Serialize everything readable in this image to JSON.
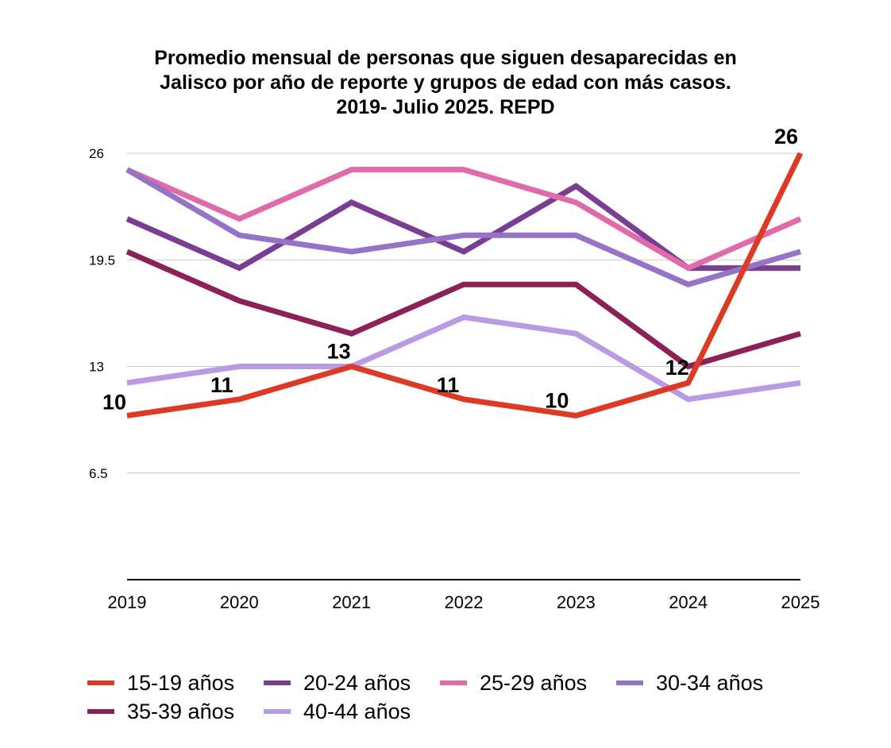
{
  "chart_data": {
    "type": "line",
    "title_lines": [
      "Promedio mensual de personas que siguen desaparecidas en",
      "Jalisco por año de reporte y grupos de edad con más casos.",
      "2019- Julio 2025. REPD"
    ],
    "categories": [
      "2019",
      "2020",
      "2021",
      "2022",
      "2023",
      "2024",
      "2025"
    ],
    "y_ticks": [
      "26",
      "19.5",
      "13",
      "6.5"
    ],
    "y_tick_values": [
      26,
      19.5,
      13,
      6.5
    ],
    "ylim": [
      0,
      26
    ],
    "grid": true,
    "legend_position": "bottom",
    "series": [
      {
        "name": "20-24 años",
        "color": "#7b3d91",
        "values": [
          22,
          19,
          23,
          20,
          24,
          19,
          19
        ]
      },
      {
        "name": "25-29 años",
        "color": "#e06aaa",
        "values": [
          25,
          22,
          25,
          25,
          23,
          19,
          22
        ]
      },
      {
        "name": "30-34 años",
        "color": "#9574c8",
        "values": [
          25,
          21,
          20,
          21,
          21,
          18,
          20
        ]
      },
      {
        "name": "35-39 años",
        "color": "#8b2157",
        "values": [
          20,
          17,
          15,
          18,
          18,
          13,
          15
        ]
      },
      {
        "name": "40-44 años",
        "color": "#b99be3",
        "values": [
          12,
          13,
          13,
          16,
          15,
          11,
          12
        ]
      },
      {
        "name": "15-19 años",
        "color": "#dc3a24",
        "values": [
          10,
          11,
          13,
          11,
          10,
          12,
          26
        ],
        "data_labels": [
          "10",
          "11",
          "13",
          "11",
          "10",
          "12",
          "26"
        ]
      }
    ]
  },
  "legend": {
    "rows": [
      [
        {
          "label": "15-19 años",
          "color": "#dc3a24"
        },
        {
          "label": "20-24 años",
          "color": "#7b3d91"
        },
        {
          "label": "25-29 años",
          "color": "#e06aaa"
        },
        {
          "label": "30-34 años",
          "color": "#9574c8"
        }
      ],
      [
        {
          "label": "35-39 años",
          "color": "#8b2157"
        },
        {
          "label": "40-44 años",
          "color": "#b99be3"
        }
      ]
    ]
  }
}
